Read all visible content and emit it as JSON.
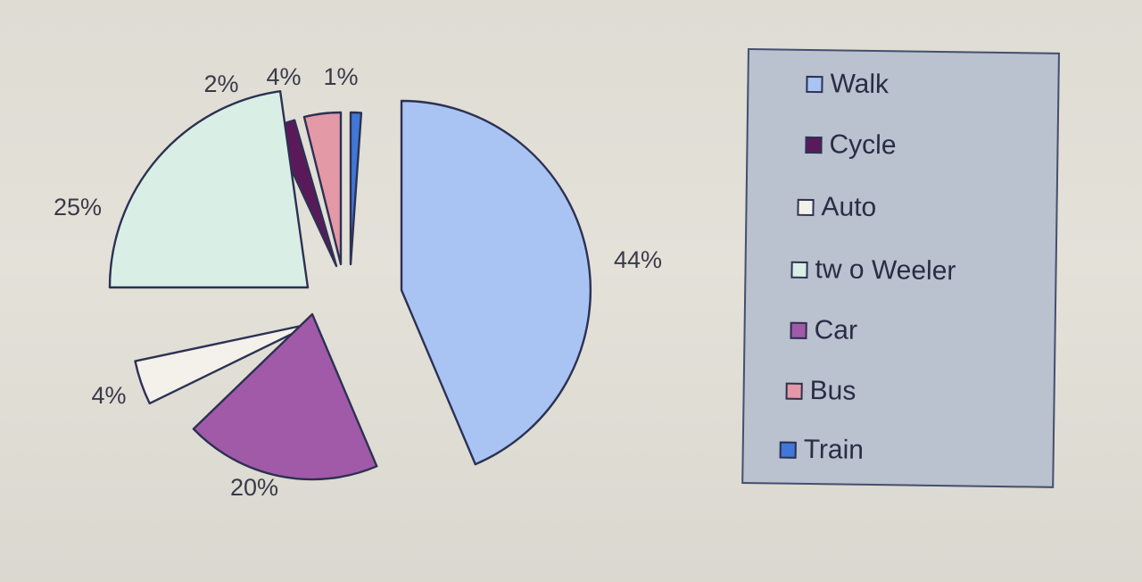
{
  "chart_data": {
    "type": "pie",
    "exploded": true,
    "legend_placement": "right",
    "slices": [
      {
        "label": "Walk",
        "value": 44,
        "value_label": "44%",
        "color": "#a9c4f3"
      },
      {
        "label": "Cycle",
        "value": 2,
        "value_label": "2%",
        "color": "#5a1a5a"
      },
      {
        "label": "Auto",
        "value": 4,
        "value_label": "4%",
        "color": "#f4f0ea"
      },
      {
        "label": "tw o Weeler",
        "value": 25,
        "value_label": "25%",
        "color": "#d9efe6"
      },
      {
        "label": "Car",
        "value": 20,
        "value_label": "20%",
        "color": "#a15aa8"
      },
      {
        "label": "Bus",
        "value": 4,
        "value_label": "4%",
        "color": "#e39aa6"
      },
      {
        "label": "Train",
        "value": 1,
        "value_label": "1%",
        "color": "#3f78d6"
      }
    ]
  }
}
